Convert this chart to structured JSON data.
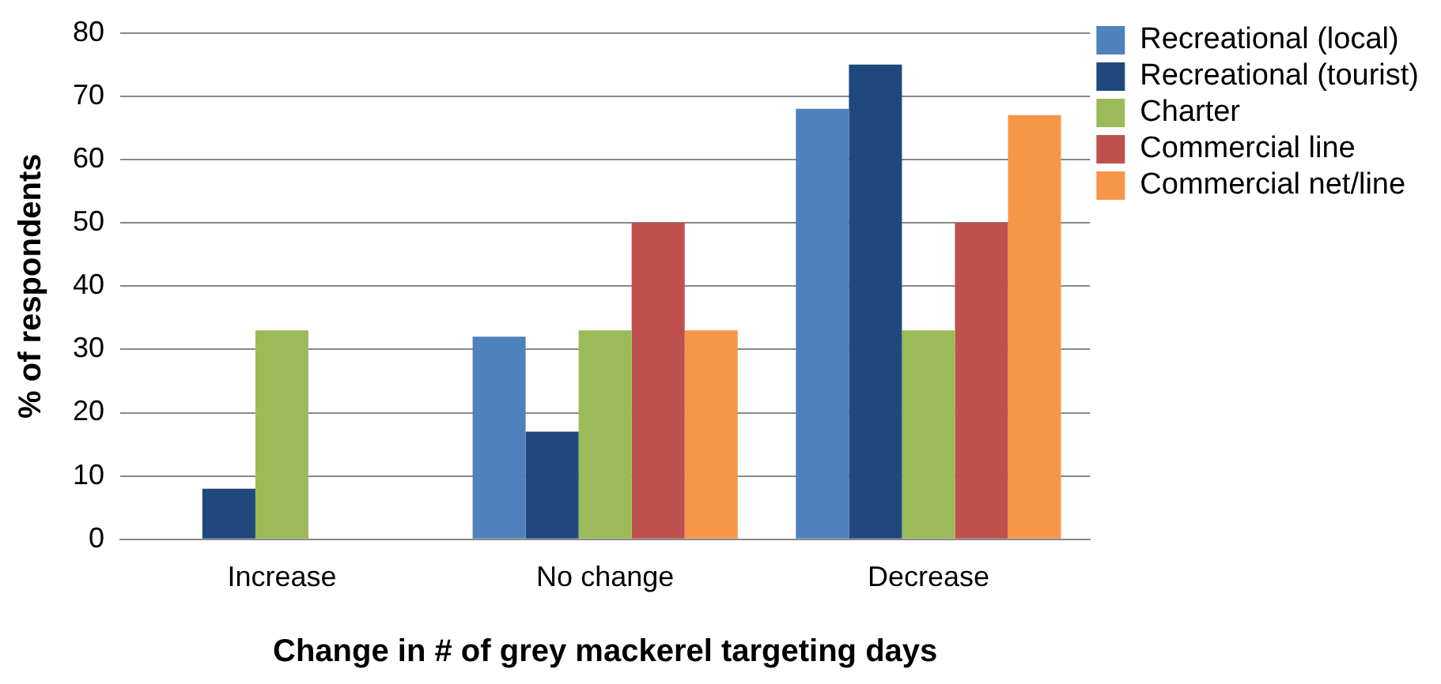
{
  "chart_data": {
    "type": "bar",
    "xlabel": "Change in # of grey mackerel targeting days",
    "ylabel": "% of respondents",
    "categories": [
      "Increase",
      "No change",
      "Decrease"
    ],
    "series": [
      {
        "name": "Recreational (local)",
        "color": "#4f81bd",
        "values": [
          0,
          32,
          68
        ]
      },
      {
        "name": "Recreational (tourist)",
        "color": "#1f497d",
        "values": [
          8,
          17,
          75
        ]
      },
      {
        "name": "Charter",
        "color": "#9bbb59",
        "values": [
          33,
          33,
          33
        ]
      },
      {
        "name": "Commercial line",
        "color": "#c0504d",
        "values": [
          0,
          50,
          50
        ]
      },
      {
        "name": "Commercial net/line",
        "color": "#f79646",
        "values": [
          0,
          33,
          67
        ]
      }
    ],
    "ylim": [
      0,
      80
    ],
    "yticks": [
      0,
      10,
      20,
      30,
      40,
      50,
      60,
      70,
      80
    ],
    "grid": "y",
    "legend": "top right"
  }
}
